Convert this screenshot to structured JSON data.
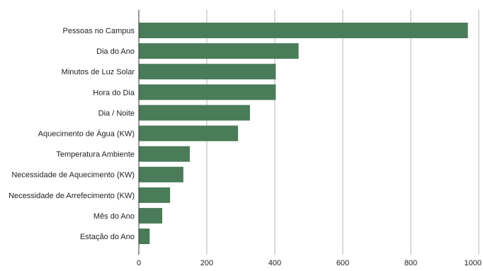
{
  "chart_data": {
    "type": "bar",
    "orientation": "horizontal",
    "categories": [
      "Pessoas no Campus",
      "Dia do Ano",
      "Minutos de Luz Solar",
      "Hora do Dia",
      "Dia / Noite",
      "Aquecimento de Água (KW)",
      "Temperatura Ambiente",
      "Necessidade de Aquecimento (KW)",
      "Necessidade de Arrefecimento (KW)",
      "Mês do Ano",
      "Estação do Ano"
    ],
    "values": [
      968,
      470,
      403,
      403,
      327,
      292,
      150,
      131,
      92,
      69,
      32
    ],
    "xlim": [
      0,
      1000
    ],
    "xticks": [
      0,
      200,
      400,
      600,
      800,
      1000
    ],
    "grid": true,
    "bar_color": "#4a7c59",
    "grid_color": "#b5b5b5",
    "title": "",
    "xlabel": "",
    "ylabel": ""
  }
}
